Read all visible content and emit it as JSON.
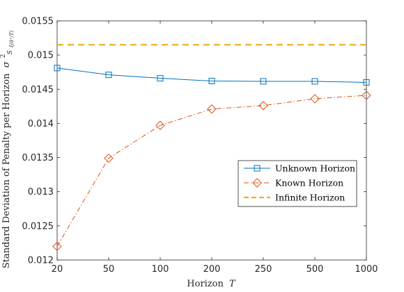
{
  "chart_data": {
    "type": "line",
    "categories": [
      "20",
      "50",
      "100",
      "200",
      "250",
      "500",
      "1000"
    ],
    "x_tick_labels": [
      "20",
      "50",
      "100",
      "200",
      "250",
      "500",
      "1000"
    ],
    "y_tick_labels": [
      "0.012",
      "0.0125",
      "0.013",
      "0.0135",
      "0.014",
      "0.0145",
      "0.015",
      "0.0155"
    ],
    "ylim": [
      0.012,
      0.0155
    ],
    "xlabel_main": "Horizon",
    "xlabel_var": "T",
    "ylabel_main": "Standard Deviation of Penalty per Horizon",
    "ylabel_sym": "σ",
    "ylabel_sup": "2",
    "ylabel_sub": "S",
    "ylabel_subsub": "ξ(δ⁺/T)",
    "legend_position": "center-right",
    "grid": false,
    "series": [
      {
        "name": "Unknown Horizon",
        "color": "#0072BD",
        "marker": "square",
        "line_style": "solid",
        "values": [
          0.01481,
          0.01471,
          0.01466,
          0.01462,
          0.014615,
          0.014615,
          0.0146
        ]
      },
      {
        "name": "Known Horizon",
        "color": "#D95319",
        "marker": "diamond",
        "line_style": "dashdot",
        "values": [
          0.0122,
          0.01349,
          0.01397,
          0.01421,
          0.01426,
          0.01436,
          0.01441
        ]
      },
      {
        "name": "Infinite Horizon",
        "color": "#EDB120",
        "marker": "none",
        "line_style": "dashed",
        "values": [
          0.01515,
          0.01515,
          0.01515,
          0.01515,
          0.01515,
          0.01515,
          0.01515
        ]
      }
    ]
  }
}
